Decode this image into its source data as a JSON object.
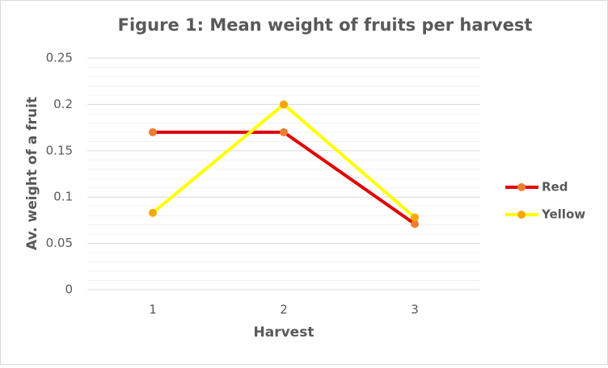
{
  "chart_data": {
    "type": "line",
    "title": "Figure 1: Mean weight of fruits per harvest",
    "x_label": "Harvest",
    "y_label": "Av. weight of a fruit",
    "categories": [
      "1",
      "2",
      "3"
    ],
    "series": [
      {
        "name": "Red",
        "color": "#e00000",
        "marker_color": "#ed7d31",
        "values": [
          0.17,
          0.17,
          0.071
        ]
      },
      {
        "name": "Yellow",
        "color": "#ffff00",
        "marker_color": "#f5a800",
        "values": [
          0.083,
          0.2,
          0.078
        ]
      }
    ],
    "ylim": [
      0,
      0.25
    ],
    "yticks": [
      0,
      0.05,
      0.1,
      0.15,
      0.2,
      0.25
    ],
    "yminorticks": [
      0.01,
      0.02,
      0.03,
      0.04,
      0.06,
      0.07,
      0.08,
      0.09,
      0.11,
      0.12,
      0.13,
      0.14,
      0.16,
      0.17,
      0.18,
      0.19,
      0.21,
      0.22,
      0.23,
      0.24
    ],
    "grid": true,
    "legend": "right"
  }
}
